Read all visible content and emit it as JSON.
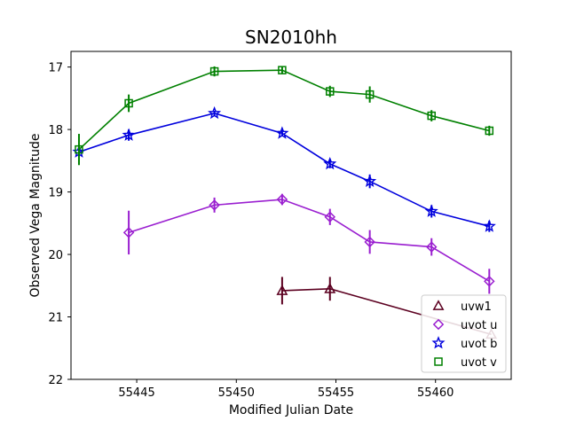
{
  "chart_data": {
    "type": "line",
    "title": "SN2010hh",
    "xlabel": "Modified Julian Date",
    "ylabel": "Observed Vega Magnitude",
    "xlim": [
      55441.7,
      55463.8
    ],
    "ylim": [
      22,
      16.75
    ],
    "y_inverted": true,
    "xticks": [
      55445,
      55450,
      55455,
      55460
    ],
    "yticks": [
      17,
      18,
      19,
      20,
      21,
      22
    ],
    "grid": false,
    "legend_position": "lower-right",
    "series": [
      {
        "name": "uvw1",
        "color": "#5c0020",
        "marker": "triangle",
        "points": [
          {
            "x": 55452.3,
            "y": 20.58,
            "err": 0.22
          },
          {
            "x": 55454.7,
            "y": 20.55,
            "err": 0.19
          },
          {
            "x": 55462.8,
            "y": 21.28,
            "err": 0.0
          }
        ]
      },
      {
        "name": "uvot u",
        "color": "#9a1fd0",
        "marker": "diamond",
        "points": [
          {
            "x": 55444.6,
            "y": 19.65,
            "err": 0.35
          },
          {
            "x": 55448.9,
            "y": 19.21,
            "err": 0.12
          },
          {
            "x": 55452.3,
            "y": 19.12,
            "err": 0.09
          },
          {
            "x": 55454.7,
            "y": 19.4,
            "err": 0.13
          },
          {
            "x": 55456.7,
            "y": 19.8,
            "err": 0.19
          },
          {
            "x": 55459.8,
            "y": 19.88,
            "err": 0.14
          },
          {
            "x": 55462.7,
            "y": 20.43,
            "err": 0.2
          }
        ]
      },
      {
        "name": "uvot b",
        "color": "#0000dd",
        "marker": "star",
        "points": [
          {
            "x": 55442.1,
            "y": 18.36,
            "err": 0.07
          },
          {
            "x": 55444.6,
            "y": 18.09,
            "err": 0.09
          },
          {
            "x": 55448.9,
            "y": 17.74,
            "err": 0.04
          },
          {
            "x": 55452.3,
            "y": 18.06,
            "err": 0.05
          },
          {
            "x": 55454.7,
            "y": 18.55,
            "err": 0.07
          },
          {
            "x": 55456.7,
            "y": 18.83,
            "err": 0.11
          },
          {
            "x": 55459.8,
            "y": 19.31,
            "err": 0.1
          },
          {
            "x": 55462.7,
            "y": 19.55,
            "err": 0.09
          }
        ]
      },
      {
        "name": "uvot v",
        "color": "#008000",
        "marker": "square",
        "points": [
          {
            "x": 55442.1,
            "y": 18.32,
            "err": 0.25
          },
          {
            "x": 55444.6,
            "y": 17.58,
            "err": 0.14
          },
          {
            "x": 55448.9,
            "y": 17.07,
            "err": 0.08
          },
          {
            "x": 55452.3,
            "y": 17.05,
            "err": 0.06
          },
          {
            "x": 55454.7,
            "y": 17.39,
            "err": 0.09
          },
          {
            "x": 55456.7,
            "y": 17.44,
            "err": 0.13
          },
          {
            "x": 55459.8,
            "y": 17.78,
            "err": 0.09
          },
          {
            "x": 55462.7,
            "y": 18.02,
            "err": 0.08
          }
        ]
      }
    ]
  }
}
